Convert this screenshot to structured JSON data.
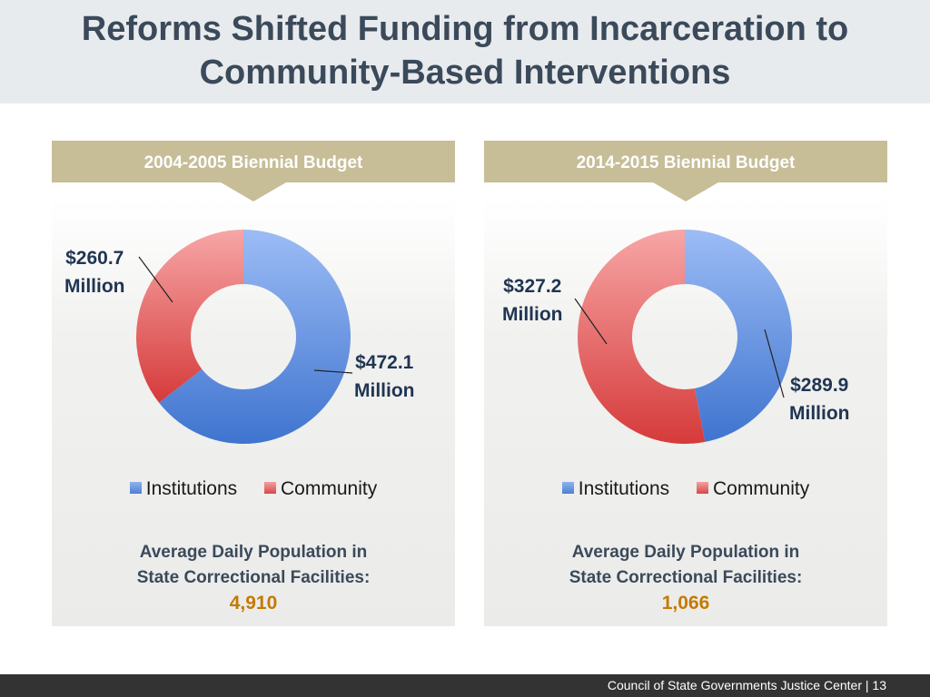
{
  "slide": {
    "title_line1": "Reforms Shifted Funding from Incarceration to",
    "title_line2": "Community-Based Interventions",
    "footer": "Council of State Governments Justice Center  |  13"
  },
  "panels": [
    {
      "banner": "2004-2005 Biennial Budget",
      "institutions_label_1": "$472.1",
      "institutions_label_2": "Million",
      "community_label_1": "$260.7",
      "community_label_2": "Million",
      "stat_line1": "Average Daily Population in",
      "stat_line2": "State Correctional Facilities:",
      "stat_value": "4,910"
    },
    {
      "banner": "2014-2015 Biennial Budget",
      "institutions_label_1": "$289.9",
      "institutions_label_2": "Million",
      "community_label_1": "$327.2",
      "community_label_2": "Million",
      "stat_line1": "Average Daily Population in",
      "stat_line2": "State Correctional Facilities:",
      "stat_value": "1,066"
    }
  ],
  "legend": {
    "institutions": "Institutions",
    "community": "Community"
  },
  "colors": {
    "institutions": "#5b8ee0",
    "community": "#e05858",
    "banner": "#c7bd97",
    "title": "#3b4a5a",
    "stat_value": "#c47a00"
  },
  "chart_data": [
    {
      "type": "pie",
      "title": "2004-2005 Biennial Budget",
      "categories": [
        "Institutions",
        "Community"
      ],
      "values": [
        472.1,
        260.7
      ],
      "unit": "Million",
      "legend": "bottom"
    },
    {
      "type": "pie",
      "title": "2014-2015 Biennial Budget",
      "categories": [
        "Institutions",
        "Community"
      ],
      "values": [
        289.9,
        327.2
      ],
      "unit": "Million",
      "legend": "bottom"
    }
  ]
}
